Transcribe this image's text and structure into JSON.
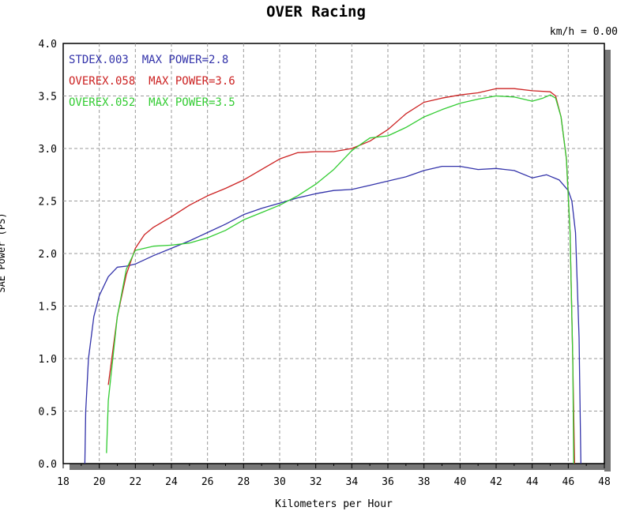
{
  "chart_data": {
    "type": "line",
    "title": "OVER Racing",
    "readout": "km/h = 0.00",
    "xlabel": "Kilometers per Hour",
    "ylabel": "SAE Power (PS)",
    "xlim": [
      18,
      48
    ],
    "ylim": [
      0,
      4
    ],
    "xticks": [
      "18",
      "20",
      "22",
      "24",
      "26",
      "28",
      "30",
      "32",
      "34",
      "36",
      "38",
      "40",
      "42",
      "44",
      "46",
      "48"
    ],
    "yticks": [
      "0.0",
      "0.5",
      "1.0",
      "1.5",
      "2.0",
      "2.5",
      "3.0",
      "3.5",
      "4.0"
    ],
    "grid": true,
    "legend": [
      "STDEX.003  MAX POWER=2.8",
      "OVEREX.058  MAX POWER=3.6",
      "OVEREX.052  MAX POWER=3.5"
    ],
    "series": [
      {
        "name": "STDEX.003",
        "max_power": "2.8",
        "color": "#3333aa",
        "points": [
          [
            19.2,
            0.0
          ],
          [
            19.25,
            0.5
          ],
          [
            19.4,
            1.0
          ],
          [
            19.7,
            1.4
          ],
          [
            20.0,
            1.6
          ],
          [
            20.5,
            1.78
          ],
          [
            21.0,
            1.87
          ],
          [
            21.5,
            1.88
          ],
          [
            22.0,
            1.9
          ],
          [
            23.0,
            1.98
          ],
          [
            24.0,
            2.05
          ],
          [
            25.0,
            2.12
          ],
          [
            26.0,
            2.2
          ],
          [
            27.0,
            2.28
          ],
          [
            28.0,
            2.37
          ],
          [
            29.0,
            2.43
          ],
          [
            30.0,
            2.48
          ],
          [
            31.0,
            2.53
          ],
          [
            32.0,
            2.57
          ],
          [
            33.0,
            2.6
          ],
          [
            34.0,
            2.61
          ],
          [
            35.0,
            2.65
          ],
          [
            36.0,
            2.69
          ],
          [
            37.0,
            2.73
          ],
          [
            38.0,
            2.79
          ],
          [
            39.0,
            2.83
          ],
          [
            40.0,
            2.83
          ],
          [
            41.0,
            2.8
          ],
          [
            42.0,
            2.81
          ],
          [
            43.0,
            2.79
          ],
          [
            44.0,
            2.72
          ],
          [
            44.8,
            2.75
          ],
          [
            45.5,
            2.7
          ],
          [
            46.0,
            2.6
          ],
          [
            46.2,
            2.5
          ],
          [
            46.4,
            2.2
          ],
          [
            46.6,
            1.2
          ],
          [
            46.7,
            0.0
          ]
        ]
      },
      {
        "name": "OVEREX.058",
        "max_power": "3.6",
        "color": "#cc2222",
        "points": [
          [
            20.5,
            0.75
          ],
          [
            21.0,
            1.4
          ],
          [
            21.5,
            1.8
          ],
          [
            22.0,
            2.05
          ],
          [
            22.5,
            2.18
          ],
          [
            23.0,
            2.25
          ],
          [
            24.0,
            2.35
          ],
          [
            25.0,
            2.46
          ],
          [
            26.0,
            2.55
          ],
          [
            27.0,
            2.62
          ],
          [
            28.0,
            2.7
          ],
          [
            29.0,
            2.8
          ],
          [
            30.0,
            2.9
          ],
          [
            31.0,
            2.96
          ],
          [
            32.0,
            2.97
          ],
          [
            33.0,
            2.97
          ],
          [
            34.0,
            3.0
          ],
          [
            35.0,
            3.07
          ],
          [
            36.0,
            3.18
          ],
          [
            37.0,
            3.33
          ],
          [
            38.0,
            3.44
          ],
          [
            39.0,
            3.48
          ],
          [
            40.0,
            3.51
          ],
          [
            41.0,
            3.53
          ],
          [
            42.0,
            3.57
          ],
          [
            43.0,
            3.57
          ],
          [
            44.0,
            3.55
          ],
          [
            45.0,
            3.54
          ],
          [
            45.3,
            3.5
          ],
          [
            45.6,
            3.3
          ],
          [
            45.9,
            2.9
          ],
          [
            46.1,
            2.2
          ],
          [
            46.25,
            1.0
          ],
          [
            46.35,
            0.0
          ]
        ]
      },
      {
        "name": "OVEREX.052",
        "max_power": "3.5",
        "color": "#33cc33",
        "points": [
          [
            20.4,
            0.1
          ],
          [
            20.5,
            0.6
          ],
          [
            21.0,
            1.4
          ],
          [
            21.5,
            1.85
          ],
          [
            22.0,
            2.03
          ],
          [
            23.0,
            2.07
          ],
          [
            24.0,
            2.08
          ],
          [
            25.0,
            2.1
          ],
          [
            26.0,
            2.15
          ],
          [
            27.0,
            2.22
          ],
          [
            28.0,
            2.32
          ],
          [
            29.0,
            2.39
          ],
          [
            30.0,
            2.46
          ],
          [
            31.0,
            2.55
          ],
          [
            32.0,
            2.66
          ],
          [
            33.0,
            2.8
          ],
          [
            34.0,
            2.98
          ],
          [
            35.0,
            3.1
          ],
          [
            36.0,
            3.12
          ],
          [
            37.0,
            3.2
          ],
          [
            38.0,
            3.3
          ],
          [
            39.0,
            3.37
          ],
          [
            40.0,
            3.43
          ],
          [
            41.0,
            3.47
          ],
          [
            42.0,
            3.5
          ],
          [
            43.0,
            3.49
          ],
          [
            44.0,
            3.45
          ],
          [
            44.6,
            3.48
          ],
          [
            45.0,
            3.51
          ],
          [
            45.3,
            3.48
          ],
          [
            45.6,
            3.3
          ],
          [
            45.9,
            2.9
          ],
          [
            46.1,
            2.2
          ],
          [
            46.25,
            1.0
          ],
          [
            46.3,
            0.0
          ]
        ]
      }
    ]
  }
}
